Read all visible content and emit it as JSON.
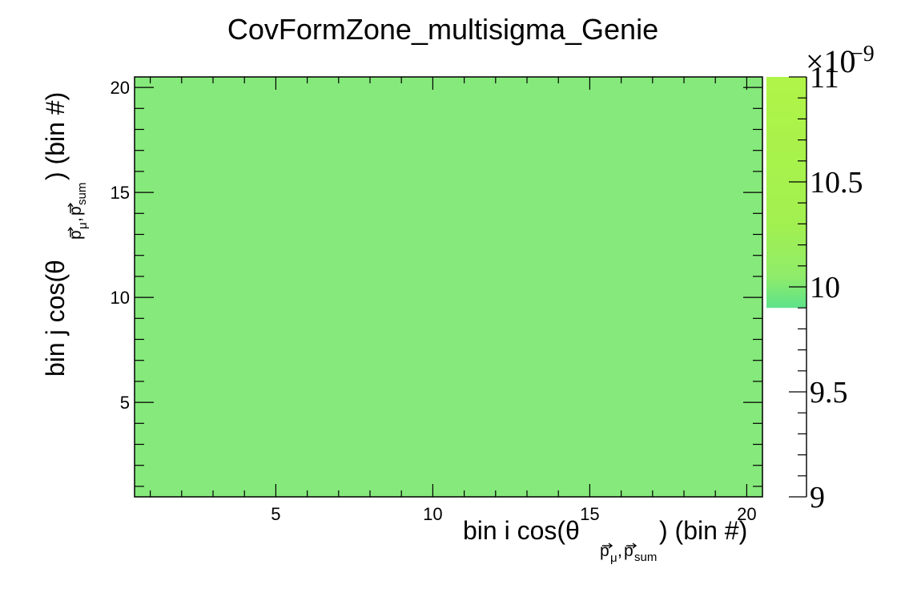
{
  "chart_data": {
    "type": "heatmap",
    "title": "CovFormZone_multisigma_Genie",
    "xlabel": {
      "prefix": "bin i cos(θ",
      "sub1": "p",
      "sub1_sub": "μ",
      "sep": ",",
      "sub2": "p",
      "sub2_sub": "sum",
      "suffix": ") (bin #)"
    },
    "ylabel": {
      "prefix": "bin j cos(θ",
      "sub1": "p",
      "sub1_sub": "μ",
      "sep": ",",
      "sub2": "p",
      "sub2_sub": "sum",
      "suffix": ") (bin #)"
    },
    "xlim": [
      0.5,
      20.5
    ],
    "ylim": [
      0.5,
      20.5
    ],
    "x_ticks": [
      5,
      10,
      15,
      20
    ],
    "y_ticks": [
      5,
      10,
      15,
      20
    ],
    "nbins_x": 20,
    "nbins_y": 20,
    "uniform_value": 9.9e-09,
    "cell_color": "#85e97b",
    "colorbar": {
      "zlim": [
        9,
        11
      ],
      "exponent_label": "×10",
      "exponent": "−9",
      "ticks": [
        9,
        9.5,
        10,
        10.5,
        11
      ],
      "tick_labels": [
        "9",
        "9.5",
        "10",
        "10.5",
        "11"
      ],
      "filled_from": 9.9,
      "stops": [
        {
          "value": 9.9,
          "color": "#5ee28a"
        },
        {
          "value": 10.05,
          "color": "#8fec6a"
        },
        {
          "value": 10.3,
          "color": "#a2f050"
        },
        {
          "value": 11,
          "color": "#b0f447"
        }
      ]
    },
    "grid": false,
    "legend": "none"
  }
}
